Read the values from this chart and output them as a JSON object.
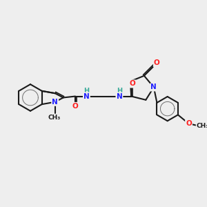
{
  "background_color": "#eeeeee",
  "bond_color": "#1a1a1a",
  "bond_width": 1.5,
  "atom_colors": {
    "N": "#2020ff",
    "O": "#ff2020",
    "H": "#3aaa99",
    "C": "#1a1a1a"
  },
  "font_size": 7.5,
  "figsize": [
    3.0,
    3.0
  ],
  "dpi": 100
}
